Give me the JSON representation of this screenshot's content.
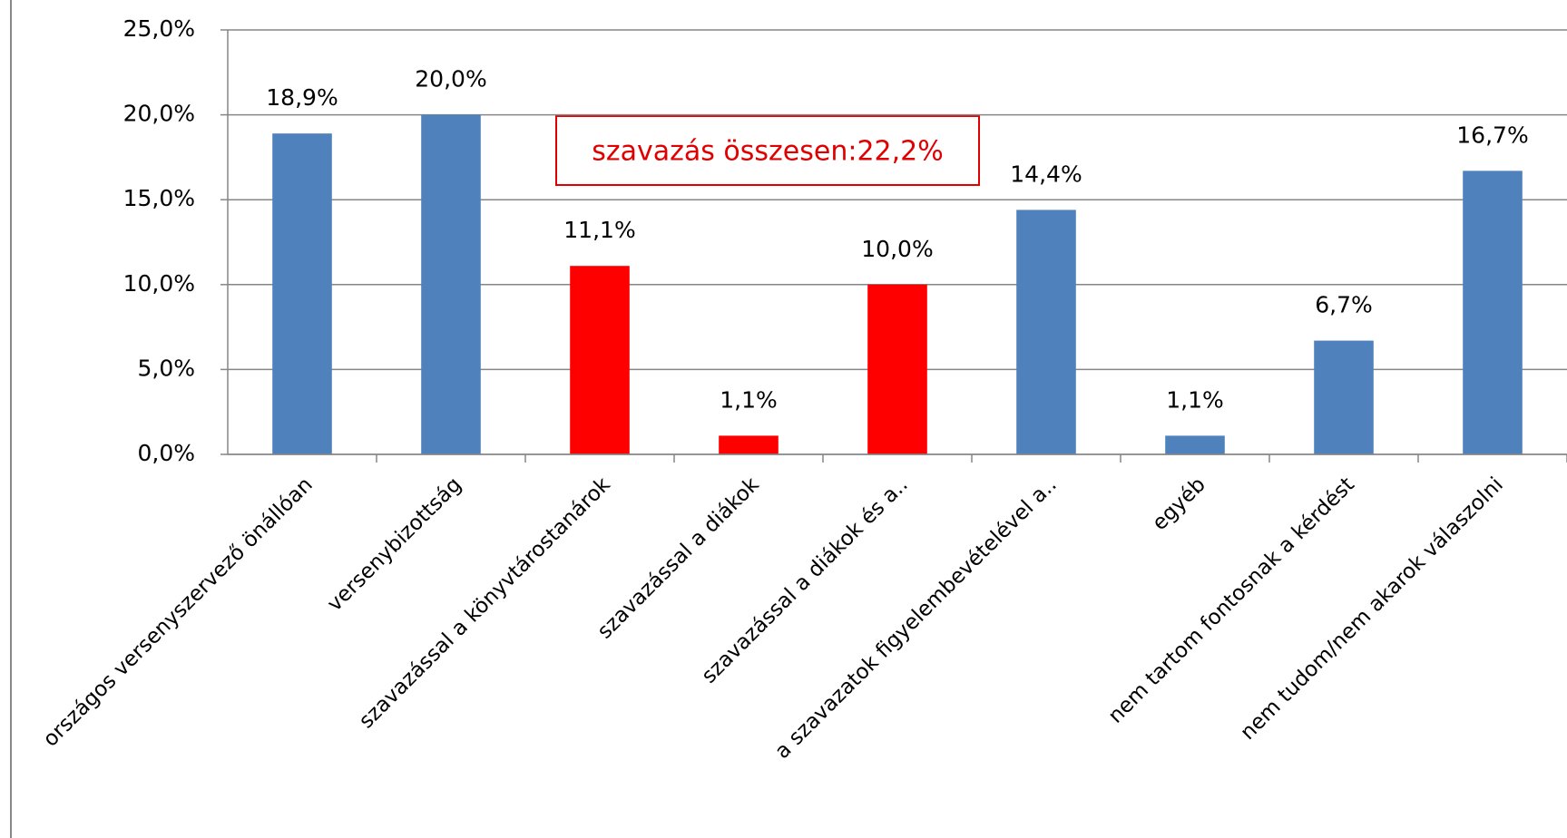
{
  "chart_data": {
    "type": "bar",
    "categories": [
      "országos versenyszervező önállóan",
      "versenybizottság",
      "szavazással a könyvtárostanárok",
      "szavazással a diákok",
      "szavazással a diákok és a..",
      "a szavazatok figyelembevételével a..",
      "egyéb",
      "nem tartom fontosnak a kérdést",
      "nem tudom/nem akarok válaszolni"
    ],
    "values": [
      18.9,
      20.0,
      11.1,
      1.1,
      10.0,
      14.4,
      1.1,
      6.7,
      16.7
    ],
    "value_labels": [
      "18,9%",
      "20,0%",
      "11,1%",
      "1,1%",
      "10,0%",
      "14,4%",
      "1,1%",
      "6,7%",
      "16,7%"
    ],
    "colors": [
      "#4f81bd",
      "#4f81bd",
      "#ff0000",
      "#ff0000",
      "#ff0000",
      "#4f81bd",
      "#4f81bd",
      "#4f81bd",
      "#4f81bd"
    ],
    "annotation": "szavazás összesen:22,2%",
    "ylim": [
      0,
      25
    ],
    "yticks": [
      {
        "value": 0,
        "label": "0,0%"
      },
      {
        "value": 5,
        "label": "5,0%"
      },
      {
        "value": 10,
        "label": "10,0%"
      },
      {
        "value": 15,
        "label": "15,0%"
      },
      {
        "value": 20,
        "label": "20,0%"
      },
      {
        "value": 25,
        "label": "25,0%"
      }
    ],
    "grid": true
  }
}
